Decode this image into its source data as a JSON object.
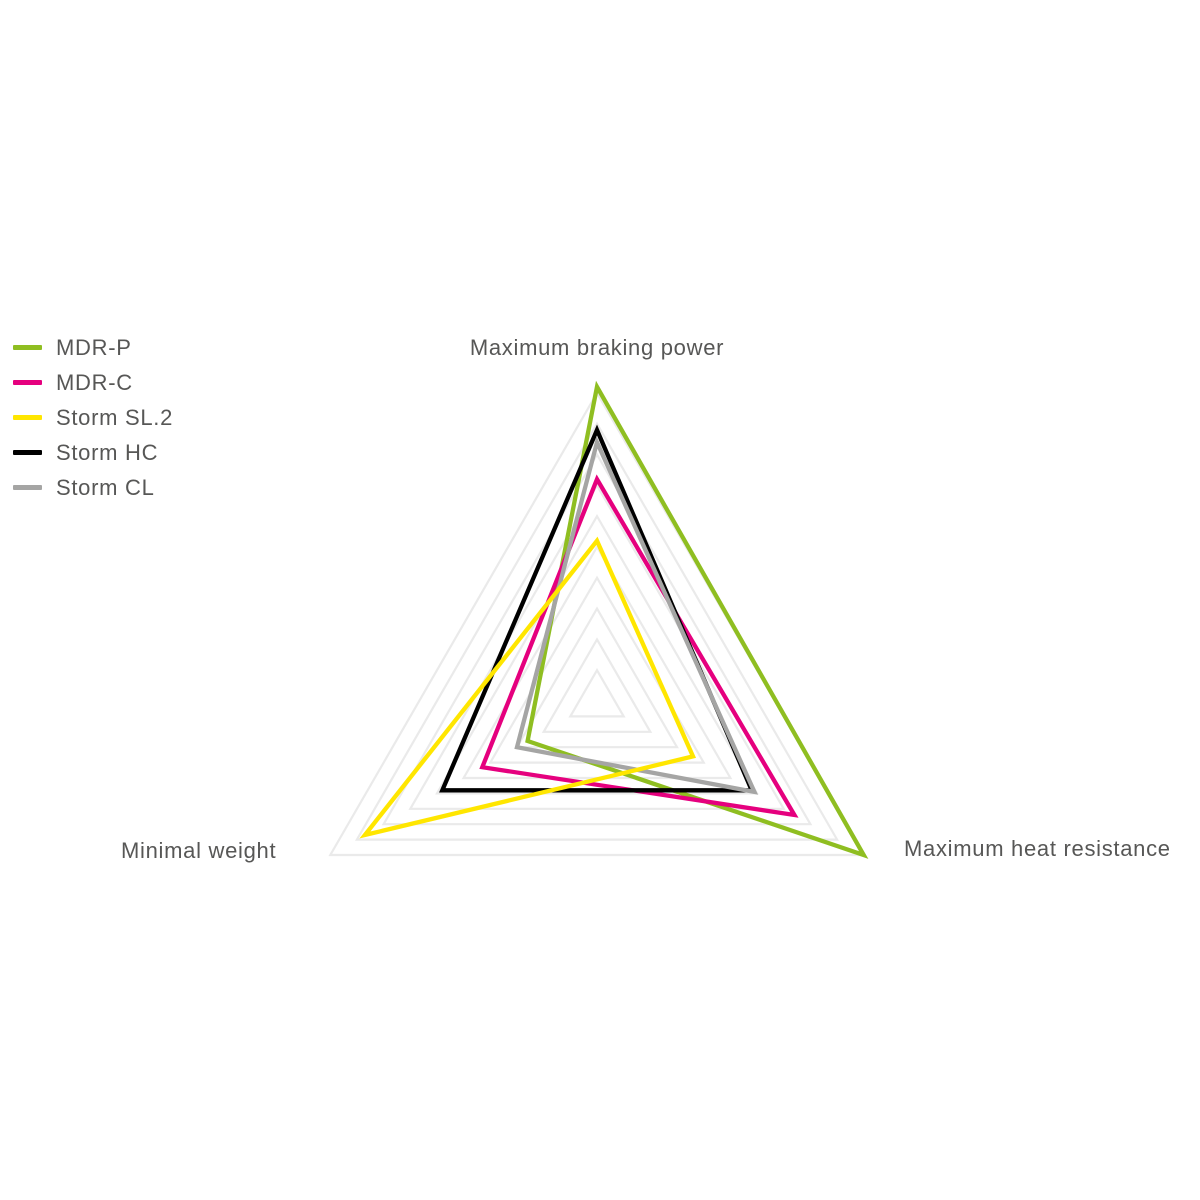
{
  "chart_data": {
    "type": "radar",
    "shape": "triangle",
    "max": 10,
    "grid_levels": 10,
    "grid_color": "#EAEAEA",
    "label_color": "#575756",
    "axes": [
      {
        "label": "Maximum braking power",
        "position": "top"
      },
      {
        "label": "Maximum heat resistance",
        "position": "bottom-right"
      },
      {
        "label": "Minimal weight",
        "position": "bottom-left"
      }
    ],
    "series": [
      {
        "name": "MDR-P",
        "color": "#8FBE21",
        "values": [
          10.2,
          10.0,
          2.6
        ]
      },
      {
        "name": "MDR-C",
        "color": "#E5007E",
        "values": [
          7.2,
          7.4,
          4.3
        ]
      },
      {
        "name": "Storm SL.2",
        "color": "#FFE600",
        "values": [
          5.2,
          3.6,
          8.7
        ]
      },
      {
        "name": "Storm HC",
        "color": "#000000",
        "values": [
          8.8,
          5.8,
          5.8
        ]
      },
      {
        "name": "Storm CL",
        "color": "#A5A5A4",
        "values": [
          8.4,
          5.9,
          3.0
        ]
      }
    ],
    "draw_order": [
      "MDR-P",
      "MDR-C",
      "Storm HC",
      "Storm CL",
      "Storm SL.2"
    ],
    "legend_position": "top-left"
  }
}
